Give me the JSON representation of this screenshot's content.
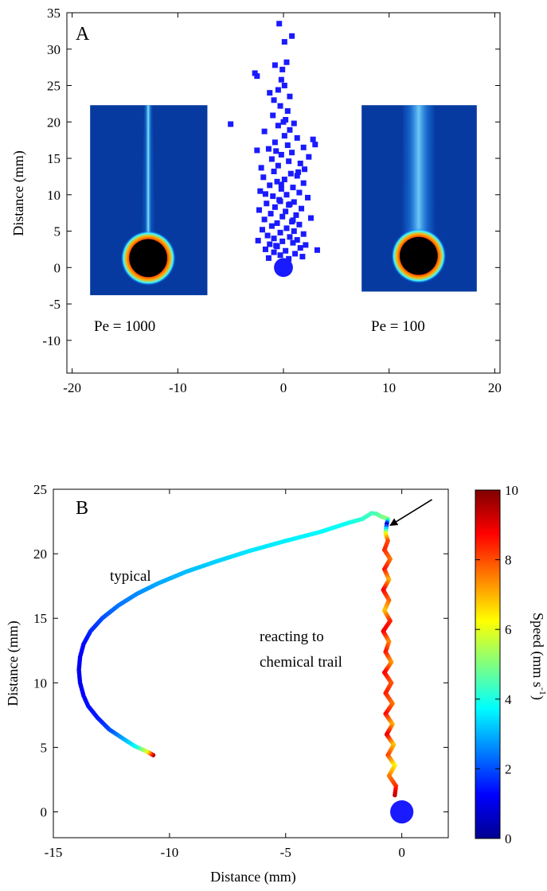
{
  "chart_data": [
    {
      "panel": "A",
      "type": "scatter",
      "ylabel": "Distance (mm)",
      "xlim": [
        -20.5,
        20.5
      ],
      "ylim": [
        -14.5,
        35
      ],
      "xticks": [
        -20,
        -10,
        0,
        10,
        20
      ],
      "yticks": [
        -10,
        -5,
        0,
        5,
        10,
        15,
        20,
        25,
        30,
        35
      ],
      "annotations": [
        "Pe = 1000",
        "Pe = 100"
      ],
      "insets": [
        {
          "label": "Pe = 1000",
          "x_range": [
            -18.3,
            -7.2
          ],
          "y_range": [
            -3.8,
            22.3
          ],
          "sphere_center": [
            -12.8,
            1.3
          ],
          "sphere_radius": 1.8,
          "plume": "narrow"
        },
        {
          "label": "Pe = 100",
          "x_range": [
            7.4,
            18.3
          ],
          "y_range": [
            -3.3,
            22.3
          ],
          "sphere_center": [
            12.8,
            1.6
          ],
          "sphere_radius": 1.8,
          "plume": "wide"
        }
      ],
      "sphere": {
        "x": 0,
        "y": 0,
        "radius": 1.3
      },
      "series": [
        {
          "marker": "square",
          "color": "#1a1aff",
          "points": [
            [
              -5.0,
              19.7
            ],
            [
              -2.7,
              26.7
            ],
            [
              -2.5,
              26.3
            ],
            [
              -0.4,
              33.5
            ],
            [
              0.8,
              31.8
            ],
            [
              0.1,
              31.0
            ],
            [
              0.3,
              28.2
            ],
            [
              -0.8,
              27.8
            ],
            [
              -0.1,
              27.2
            ],
            [
              -0.2,
              25.8
            ],
            [
              0.1,
              25.0
            ],
            [
              -1.3,
              24.0
            ],
            [
              0.6,
              23.5
            ],
            [
              -0.9,
              23.0
            ],
            [
              -0.3,
              22.2
            ],
            [
              0.4,
              21.5
            ],
            [
              -1.0,
              20.9
            ],
            [
              0.2,
              20.3
            ],
            [
              1.0,
              19.8
            ],
            [
              -0.5,
              19.5
            ],
            [
              0.6,
              18.9
            ],
            [
              -1.8,
              18.7
            ],
            [
              0.1,
              18.1
            ],
            [
              1.3,
              17.8
            ],
            [
              2.8,
              17.6
            ],
            [
              -0.8,
              17.2
            ],
            [
              0.4,
              16.8
            ],
            [
              1.9,
              16.5
            ],
            [
              -1.4,
              16.3
            ],
            [
              -2.5,
              16.1
            ],
            [
              0.8,
              15.8
            ],
            [
              -0.2,
              15.5
            ],
            [
              2.4,
              15.2
            ],
            [
              -1.1,
              14.9
            ],
            [
              0.5,
              14.6
            ],
            [
              1.6,
              14.3
            ],
            [
              -0.5,
              14.0
            ],
            [
              -2.1,
              13.7
            ],
            [
              2.0,
              13.5
            ],
            [
              -0.9,
              13.2
            ],
            [
              0.7,
              12.9
            ],
            [
              1.3,
              12.6
            ],
            [
              -1.9,
              12.4
            ],
            [
              0.1,
              12.1
            ],
            [
              -0.6,
              11.8
            ],
            [
              1.9,
              11.6
            ],
            [
              -1.3,
              11.3
            ],
            [
              0.9,
              11.0
            ],
            [
              -0.2,
              10.8
            ],
            [
              -2.2,
              10.5
            ],
            [
              1.5,
              10.3
            ],
            [
              0.3,
              10.0
            ],
            [
              -1.0,
              9.8
            ],
            [
              2.3,
              9.6
            ],
            [
              -0.4,
              9.3
            ],
            [
              1.0,
              9.0
            ],
            [
              -1.6,
              8.8
            ],
            [
              0.5,
              8.6
            ],
            [
              -0.8,
              8.3
            ],
            [
              1.7,
              8.1
            ],
            [
              -2.3,
              7.9
            ],
            [
              0.2,
              7.7
            ],
            [
              -1.2,
              7.4
            ],
            [
              1.2,
              7.2
            ],
            [
              -0.1,
              7.0
            ],
            [
              2.6,
              6.8
            ],
            [
              -1.8,
              6.6
            ],
            [
              0.8,
              6.3
            ],
            [
              -0.6,
              6.1
            ],
            [
              1.5,
              5.9
            ],
            [
              -1.1,
              5.7
            ],
            [
              0.3,
              5.4
            ],
            [
              -2.0,
              5.2
            ],
            [
              1.0,
              5.0
            ],
            [
              -0.3,
              4.8
            ],
            [
              1.9,
              4.6
            ],
            [
              -1.5,
              4.4
            ],
            [
              0.6,
              4.2
            ],
            [
              -0.9,
              4.0
            ],
            [
              1.3,
              3.8
            ],
            [
              -0.1,
              3.6
            ],
            [
              -2.4,
              3.7
            ],
            [
              0.9,
              3.4
            ],
            [
              -1.3,
              3.2
            ],
            [
              2.1,
              3.1
            ],
            [
              -0.6,
              2.9
            ],
            [
              1.6,
              2.7
            ],
            [
              -1.7,
              2.5
            ],
            [
              0.2,
              2.3
            ],
            [
              3.2,
              2.4
            ],
            [
              -0.9,
              2.1
            ],
            [
              1.1,
              1.9
            ],
            [
              -0.3,
              1.7
            ],
            [
              1.8,
              1.5
            ],
            [
              -1.4,
              1.3
            ],
            [
              0.5,
              1.2
            ],
            [
              -0.7,
              3.0
            ],
            [
              0.9,
              6.5
            ],
            [
              -0.3,
              9.1
            ],
            [
              1.4,
              13.1
            ],
            [
              -0.7,
              16.0
            ],
            [
              0.0,
              20.0
            ],
            [
              -0.5,
              24.4
            ],
            [
              3.0,
              16.9
            ],
            [
              -1.7,
              10.1
            ],
            [
              0.6,
              8.7
            ],
            [
              -0.2,
              11.4
            ]
          ]
        }
      ]
    },
    {
      "panel": "B",
      "type": "scatter",
      "xlabel": "Distance (mm)",
      "ylabel": "Distance (mm)",
      "xlim": [
        -15,
        2
      ],
      "ylim": [
        -2,
        25
      ],
      "xticks": [
        -15,
        -10,
        -5,
        0
      ],
      "yticks": [
        0,
        5,
        10,
        15,
        20,
        25
      ],
      "annotations": [
        "typical",
        "reacting to chemical trail"
      ],
      "sphere": {
        "x": 0,
        "y": 0,
        "radius": 0.9
      },
      "arrow": {
        "from": [
          1.3,
          24.2
        ],
        "to": [
          -0.5,
          22.2
        ]
      },
      "colorbar": {
        "label": "Speed (mm s-1)",
        "label_main": "Speed (mm s",
        "label_sup": "-1",
        "label_tail": ")",
        "range": [
          0,
          10
        ],
        "ticks": [
          0,
          2,
          4,
          6,
          8,
          10
        ]
      },
      "series": [
        {
          "name": "typical",
          "path": [
            [
              -10.7,
              4.4
            ],
            [
              -11.0,
              4.7
            ],
            [
              -11.5,
              5.1
            ],
            [
              -12.1,
              5.8
            ],
            [
              -12.6,
              6.4
            ],
            [
              -13.1,
              7.3
            ],
            [
              -13.5,
              8.2
            ],
            [
              -13.7,
              9.0
            ],
            [
              -13.85,
              10.0
            ],
            [
              -13.9,
              11.0
            ],
            [
              -13.85,
              12.0
            ],
            [
              -13.7,
              13.0
            ],
            [
              -13.4,
              14.0
            ],
            [
              -12.9,
              15.0
            ],
            [
              -12.2,
              16.0
            ],
            [
              -11.4,
              16.9
            ],
            [
              -10.5,
              17.7
            ],
            [
              -9.3,
              18.6
            ],
            [
              -8.0,
              19.4
            ],
            [
              -6.6,
              20.2
            ],
            [
              -5.0,
              21.0
            ],
            [
              -3.5,
              21.7
            ],
            [
              -2.3,
              22.4
            ],
            [
              -1.7,
              22.7
            ],
            [
              -1.3,
              23.15
            ],
            [
              -1.1,
              23.1
            ],
            [
              -0.9,
              22.9
            ],
            [
              -0.6,
              22.7
            ]
          ],
          "speeds": [
            9.5,
            6.0,
            3.8,
            2.8,
            2.0,
            1.5,
            1.4,
            1.3,
            1.1,
            1.1,
            1.2,
            1.3,
            1.6,
            2.0,
            2.4,
            2.6,
            2.9,
            3.1,
            3.3,
            3.5,
            3.6,
            3.7,
            3.9,
            4.2,
            4.4,
            4.5,
            4.8,
            5.2
          ]
        },
        {
          "name": "reacting to chemical trail",
          "path": [
            [
              -0.6,
              22.7
            ],
            [
              -0.65,
              22.3
            ],
            [
              -0.7,
              21.6
            ],
            [
              -0.6,
              21.0
            ],
            [
              -0.75,
              20.3
            ],
            [
              -0.5,
              19.6
            ],
            [
              -0.75,
              18.8
            ],
            [
              -0.55,
              18.0
            ],
            [
              -0.8,
              17.2
            ],
            [
              -0.55,
              16.4
            ],
            [
              -0.75,
              15.6
            ],
            [
              -0.5,
              14.8
            ],
            [
              -0.8,
              14.0
            ],
            [
              -0.55,
              13.2
            ],
            [
              -0.7,
              12.4
            ],
            [
              -0.45,
              11.6
            ],
            [
              -0.75,
              10.8
            ],
            [
              -0.45,
              10.0
            ],
            [
              -0.7,
              9.2
            ],
            [
              -0.4,
              8.4
            ],
            [
              -0.7,
              7.6
            ],
            [
              -0.4,
              6.8
            ],
            [
              -0.65,
              6.0
            ],
            [
              -0.35,
              5.2
            ],
            [
              -0.6,
              4.4
            ],
            [
              -0.3,
              3.6
            ],
            [
              -0.55,
              2.8
            ],
            [
              -0.25,
              2.0
            ],
            [
              -0.3,
              1.3
            ]
          ],
          "speeds": [
            5.0,
            0.8,
            6.0,
            8.0,
            8.4,
            7.6,
            8.6,
            7.0,
            8.8,
            7.8,
            6.8,
            8.4,
            8.9,
            7.4,
            8.6,
            7.2,
            8.8,
            7.9,
            8.5,
            7.6,
            8.7,
            7.0,
            9.0,
            6.8,
            8.1,
            6.3,
            7.5,
            8.3,
            9.3
          ]
        }
      ]
    }
  ]
}
